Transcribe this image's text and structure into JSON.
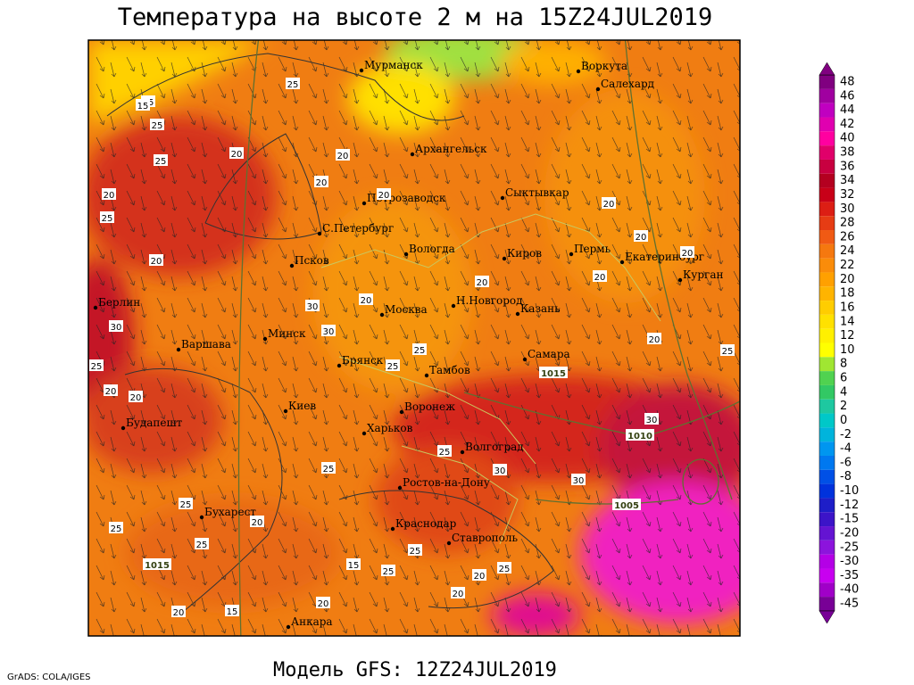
{
  "header": {
    "title": "Температура на высоте 2 м на 15Z24JUL2019"
  },
  "footer": {
    "model": "Модель GFS: 12Z24JUL2019",
    "credit": "GrADS: COLA/IGES"
  },
  "cities": [
    "Мурманск",
    "Воркута",
    "Салехард",
    "Архангельск",
    "Петрозаводск",
    "Сыктывкар",
    "С.Петербург",
    "Вологда",
    "Киров",
    "Пермь",
    "Екатеринбург",
    "Курган",
    "Псков",
    "Н.Новгород",
    "Казань",
    "Москва",
    "Берлин",
    "Минск",
    "Варшава",
    "Самара",
    "Брянск",
    "Тамбов",
    "Киев",
    "Воронеж",
    "Будапешт",
    "Харьков",
    "Волгоград",
    "Ростов-на-Дону",
    "Бухарест",
    "Краснодар",
    "Ставрополь",
    "Анкара"
  ],
  "contour_labels": [
    "15",
    "25",
    "25",
    "15",
    "25",
    "20",
    "20",
    "25",
    "20",
    "20",
    "20",
    "20",
    "20",
    "20",
    "20",
    "20",
    "20",
    "20",
    "30",
    "30",
    "30",
    "25",
    "20",
    "20",
    "25",
    "25",
    "30",
    "30",
    "30",
    "25",
    "25",
    "25",
    "25",
    "25",
    "20",
    "15",
    "25",
    "20",
    "25",
    "25",
    "20",
    "20",
    "15",
    "20",
    "25",
    "20"
  ],
  "isobar_labels": [
    "1015",
    "1010",
    "1005",
    "1015"
  ],
  "colorbar": {
    "levels": [
      48,
      46,
      44,
      42,
      40,
      38,
      36,
      34,
      32,
      30,
      28,
      26,
      24,
      22,
      20,
      18,
      16,
      14,
      12,
      10,
      8,
      6,
      4,
      2,
      0,
      -2,
      -4,
      -6,
      -8,
      -10,
      -12,
      -15,
      -20,
      -25,
      -30,
      -35,
      -40,
      -45
    ],
    "colors": [
      "#800080",
      "#a000a0",
      "#c000c0",
      "#e000b0",
      "#ff00a0",
      "#e0006a",
      "#c80040",
      "#b40020",
      "#c80018",
      "#dc1e14",
      "#e63c14",
      "#f05a14",
      "#f5780f",
      "#fa8c0a",
      "#ffa000",
      "#ffb400",
      "#ffcd00",
      "#ffe100",
      "#fff000",
      "#ffff00",
      "#a0e632",
      "#50d250",
      "#32c864",
      "#1ec8a0",
      "#00c8c8",
      "#00b4dc",
      "#0096f0",
      "#0078f0",
      "#0050e6",
      "#0032dc",
      "#1e1ec8",
      "#3c14c8",
      "#6414d2",
      "#8c14dc",
      "#b400e6",
      "#c800f0",
      "#a000c8",
      "#780096"
    ]
  }
}
